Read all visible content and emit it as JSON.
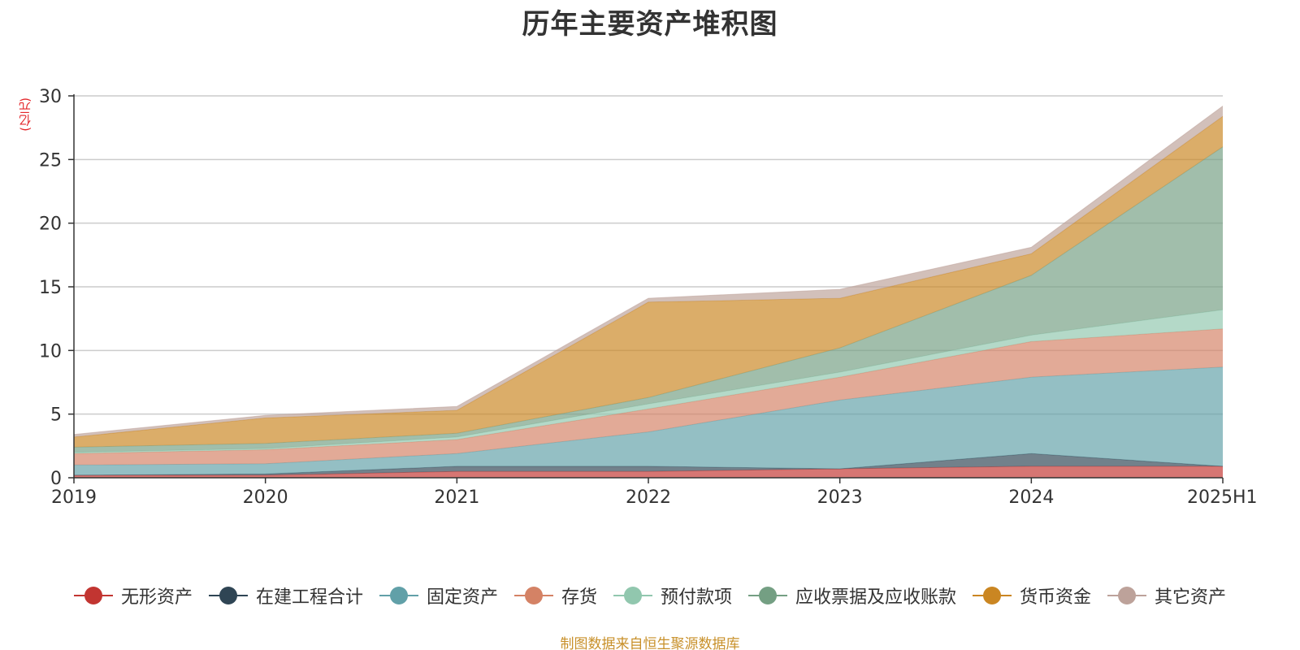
{
  "chart_data": {
    "type": "area",
    "stacked": true,
    "title": "历年主要资产堆积图",
    "unit": "(亿元)",
    "categories": [
      "2019",
      "2020",
      "2021",
      "2022",
      "2023",
      "2024",
      "2025H1"
    ],
    "ylim": [
      0,
      30
    ],
    "yticks": [
      "0",
      "5",
      "10",
      "15",
      "20",
      "25",
      "30"
    ],
    "grid": true,
    "legend_position": "bottom",
    "series": [
      {
        "name": "无形资产",
        "color": "#c23531",
        "values": [
          0.2,
          0.2,
          0.5,
          0.5,
          0.7,
          0.9,
          0.9
        ]
      },
      {
        "name": "在建工程合计",
        "color": "#2f4554",
        "values": [
          0.0,
          0.1,
          0.4,
          0.4,
          0.0,
          1.0,
          0.0
        ]
      },
      {
        "name": "固定资产",
        "color": "#61a0a8",
        "values": [
          0.8,
          0.8,
          1.0,
          2.7,
          5.4,
          6.0,
          7.8
        ]
      },
      {
        "name": "存货",
        "color": "#d48265",
        "values": [
          0.9,
          1.1,
          1.1,
          1.8,
          1.8,
          2.8,
          3.0
        ]
      },
      {
        "name": "预付款项",
        "color": "#91c7ae",
        "values": [
          0.1,
          0.1,
          0.2,
          0.4,
          0.4,
          0.5,
          1.5
        ]
      },
      {
        "name": "应收票据及应收账款",
        "color": "#749f83",
        "values": [
          0.4,
          0.4,
          0.3,
          0.5,
          1.9,
          4.7,
          12.8
        ]
      },
      {
        "name": "货币资金",
        "color": "#ca8622",
        "values": [
          0.8,
          2.0,
          1.8,
          7.5,
          3.9,
          1.7,
          2.4
        ]
      },
      {
        "name": "其它资产",
        "color": "#bda29a",
        "values": [
          0.2,
          0.2,
          0.3,
          0.3,
          0.7,
          0.5,
          0.8
        ]
      }
    ]
  },
  "source_note": "制图数据来自恒生聚源数据库"
}
